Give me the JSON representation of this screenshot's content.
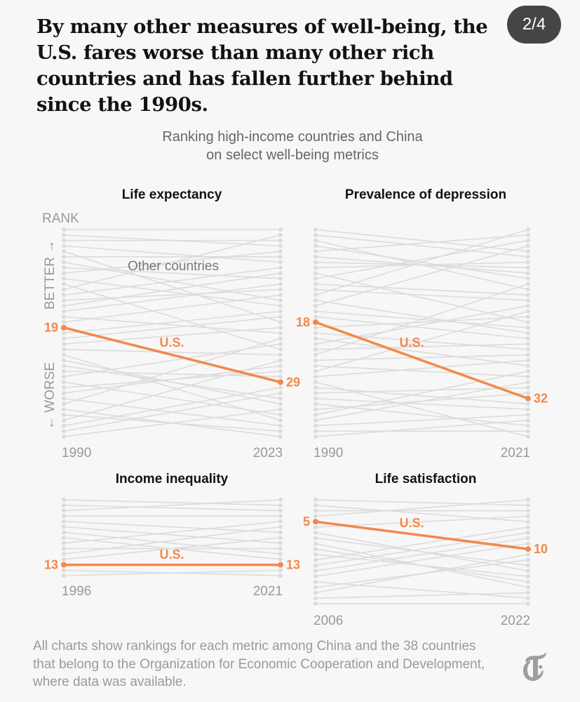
{
  "headline": "By many other measures of well-being, the U.S. fares worse than many other rich countries and has fallen further behind since the 1990s.",
  "slide_counter": "2/4",
  "subtitle_line1": "Ranking high-income countries and China",
  "subtitle_line2": "on select well-being metrics",
  "axis": {
    "rank": "RANK",
    "better": "BETTER →",
    "worse": "← WORSE"
  },
  "other_countries_label": "Other countries",
  "us_label": "U.S.",
  "footnote": "All charts show rankings for each metric among China and the 38 countries that belong to the Organization for Economic Cooperation and Development, where data was available.",
  "logo": "The New York Times T logo",
  "colors": {
    "us": "#f2894a",
    "other": "#dcdcdc",
    "background": "#f7f7f7"
  },
  "chart_data": [
    {
      "type": "line",
      "title": "Life expectancy",
      "x": [
        "1990",
        "2023"
      ],
      "ranks_shown": 39,
      "y_direction": "rank 1 at top (better)",
      "series": [
        {
          "name": "U.S.",
          "values": [
            19,
            29
          ]
        }
      ],
      "other_series_label": "Other countries"
    },
    {
      "type": "line",
      "title": "Prevalence of depression",
      "x": [
        "1990",
        "2021"
      ],
      "ranks_shown": 39,
      "y_direction": "rank 1 at top (better)",
      "series": [
        {
          "name": "U.S.",
          "values": [
            18,
            32
          ]
        }
      ]
    },
    {
      "type": "line",
      "title": "Income inequality",
      "x": [
        "1996",
        "2021"
      ],
      "ranks_shown": 15,
      "y_direction": "rank 1 at top (better)",
      "series": [
        {
          "name": "U.S.",
          "values": [
            13,
            13
          ]
        }
      ]
    },
    {
      "type": "line",
      "title": "Life satisfaction",
      "x": [
        "2006",
        "2022"
      ],
      "ranks_shown": 20,
      "y_direction": "rank 1 at top (better)",
      "series": [
        {
          "name": "U.S.",
          "values": [
            5,
            10
          ]
        }
      ]
    }
  ]
}
